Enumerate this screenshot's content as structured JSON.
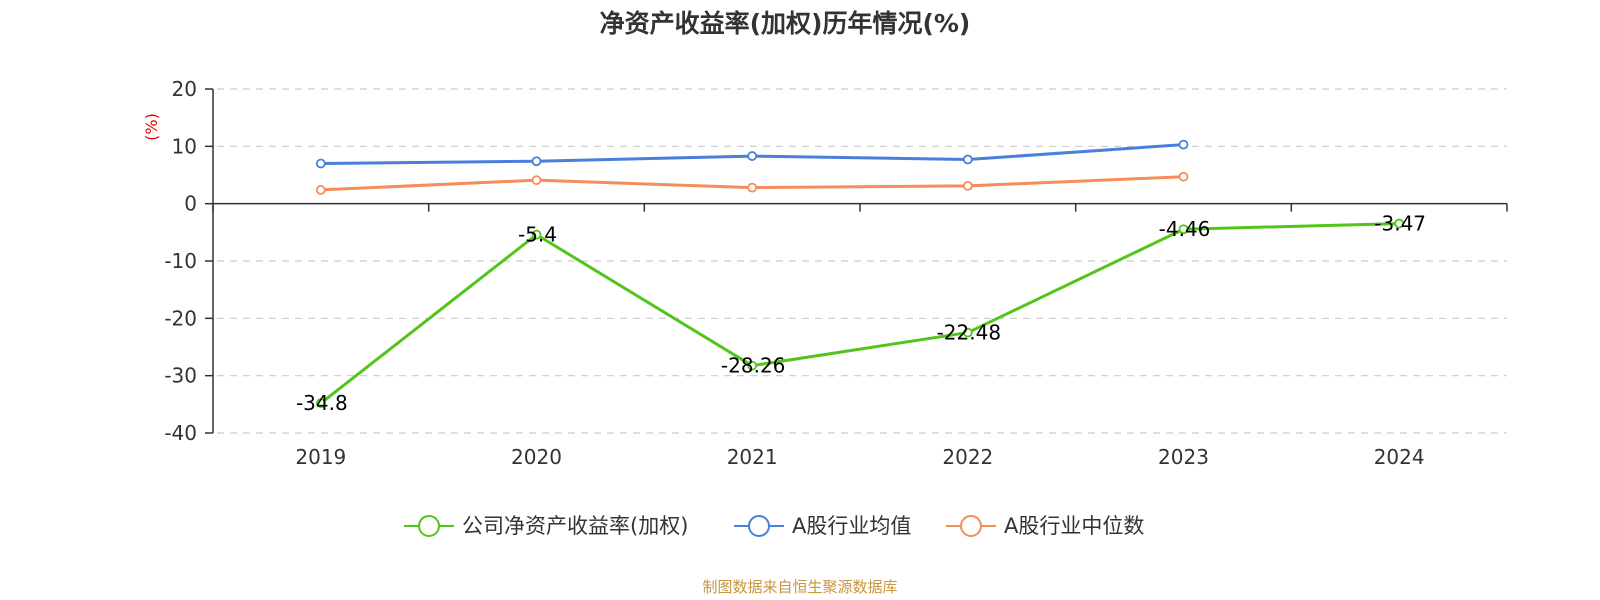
{
  "chart_data": {
    "type": "line",
    "title": "净资产收益率(加权)历年情况(%)",
    "ylabel": "(%)",
    "categories": [
      "2019",
      "2020",
      "2021",
      "2022",
      "2023",
      "2024"
    ],
    "ylim": [
      -40,
      20
    ],
    "yticks": [
      20,
      10,
      0,
      -10,
      -20,
      -30,
      -40
    ],
    "grid": true,
    "legend_position": "bottom",
    "series": [
      {
        "name": "公司净资产收益率(加权)",
        "color": "#52c41a",
        "values": [
          -34.8,
          -5.4,
          -28.26,
          -22.48,
          -4.46,
          -3.47
        ],
        "labels": [
          "-34.8",
          "-5.4",
          "-28.26",
          "-22.48",
          "-4.46",
          "-3.47"
        ]
      },
      {
        "name": "A股行业均值",
        "color": "#4a7fdc",
        "values": [
          7.0,
          7.4,
          8.3,
          7.7,
          10.3,
          null
        ]
      },
      {
        "name": "A股行业中位数",
        "color": "#f58d5b",
        "values": [
          2.4,
          4.1,
          2.8,
          3.1,
          4.7,
          null
        ]
      }
    ],
    "source": "制图数据来自恒生聚源数据库"
  }
}
